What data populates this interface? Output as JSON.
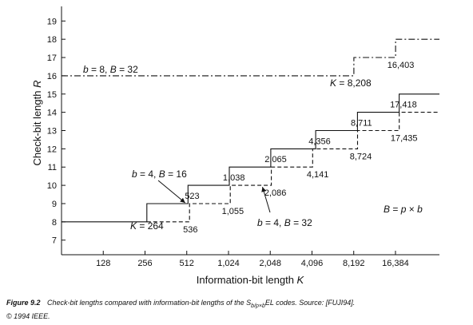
{
  "chart_data": {
    "type": "line",
    "title": "",
    "xlabel": "Information-bit length K",
    "ylabel": "Check-bit length R",
    "x_scale": "log2",
    "x_ticks": [
      128,
      256,
      512,
      1024,
      2048,
      4096,
      8192,
      16384
    ],
    "x_tick_labels": [
      "128",
      "256",
      "512",
      "1,024",
      "2,048",
      "4,096",
      "8,192",
      "16,384"
    ],
    "xlim": [
      64,
      34000
    ],
    "ylim": [
      6.2,
      19.8
    ],
    "y_ticks": [
      7,
      8,
      9,
      10,
      11,
      12,
      13,
      14,
      15,
      16,
      17,
      18,
      19
    ],
    "y_tick_labels": [
      "7",
      "8",
      "9",
      "10",
      "11",
      "12",
      "13",
      "14",
      "15",
      "16",
      "17",
      "18",
      "19"
    ],
    "grid": false,
    "series": [
      {
        "name": "b = 4, B = 16",
        "style": "solid",
        "points": [
          [
            64,
            8
          ],
          [
            264,
            8
          ],
          [
            264,
            9
          ],
          [
            523,
            9
          ],
          [
            523,
            10
          ],
          [
            1038,
            10
          ],
          [
            1038,
            11
          ],
          [
            2065,
            11
          ],
          [
            2065,
            12
          ],
          [
            4356,
            12
          ],
          [
            4356,
            13
          ],
          [
            8711,
            13
          ],
          [
            8711,
            14
          ],
          [
            17418,
            14
          ],
          [
            17418,
            15
          ],
          [
            34000,
            15
          ]
        ]
      },
      {
        "name": "b = 4, B = 32",
        "style": "dashed",
        "points": [
          [
            264,
            8
          ],
          [
            536,
            8
          ],
          [
            536,
            9
          ],
          [
            1055,
            9
          ],
          [
            1055,
            10
          ],
          [
            2086,
            10
          ],
          [
            2086,
            11
          ],
          [
            4141,
            11
          ],
          [
            4141,
            12
          ],
          [
            8724,
            12
          ],
          [
            8724,
            13
          ],
          [
            17435,
            13
          ],
          [
            17435,
            14
          ],
          [
            34000,
            14
          ]
        ]
      },
      {
        "name": "b = 8, B = 32",
        "style": "dashdot",
        "points": [
          [
            64,
            16
          ],
          [
            8208,
            16
          ],
          [
            8208,
            17
          ],
          [
            16403,
            17
          ],
          [
            16403,
            18
          ],
          [
            34000,
            18
          ]
        ]
      }
    ],
    "value_labels": [
      "523",
      "1,038",
      "2,065",
      "4,356",
      "8,711",
      "17,418",
      "1,055",
      "2,086",
      "4,141",
      "8,724",
      "17,435",
      "536",
      "16,403"
    ],
    "annotations": {
      "k264": "K = 264",
      "k8208": "K = 8,208",
      "formula": "B = p × b"
    }
  },
  "caption": {
    "figure_label": "Figure 9.2",
    "text_before": "Check-bit lengths compared with information-bit lengths of the S",
    "subscript": "b/p×b",
    "text_after": "EL codes.  Source: [FUJI94].",
    "copyright": "© 1994 IEEE."
  }
}
